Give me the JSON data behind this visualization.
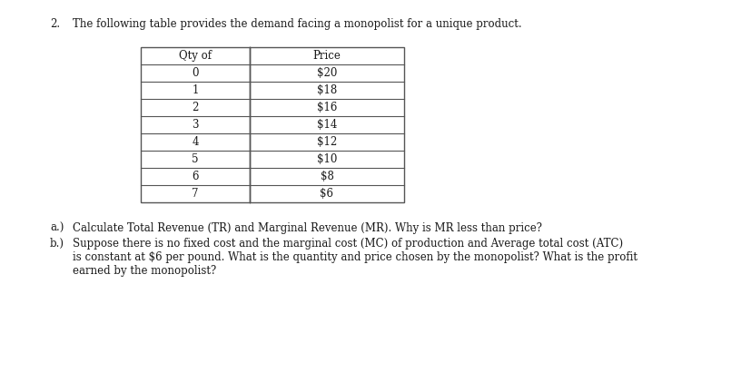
{
  "title_number": "2.",
  "title_text": "The following table provides the demand facing a monopolist for a unique product.",
  "table_headers": [
    "Qty of",
    "Price"
  ],
  "table_data": [
    [
      "0",
      "$20"
    ],
    [
      "1",
      "$18"
    ],
    [
      "2",
      "$16"
    ],
    [
      "3",
      "$14"
    ],
    [
      "4",
      "$12"
    ],
    [
      "5",
      "$10"
    ],
    [
      "6",
      "$8"
    ],
    [
      "7",
      "$6"
    ]
  ],
  "question_a": "a.)   Calculate Total Revenue (TR) and Marginal Revenue (MR). Why is MR less than price?",
  "question_b_label": "b.)",
  "question_b_line1": "Suppose there is no fixed cost and the marginal cost (MC) of production and Average total cost (ATC)",
  "question_b_line2": "is constant at $6 per pound. What is the quantity and price chosen by the monopolist? What is the profit",
  "question_b_line3": "earned by the monopolist?",
  "bg_color": "#ffffff",
  "table_border_color": "#555555",
  "text_color": "#1a1a1a",
  "font_size_title": 8.5,
  "font_size_table": 8.5,
  "font_size_questions": 8.5
}
